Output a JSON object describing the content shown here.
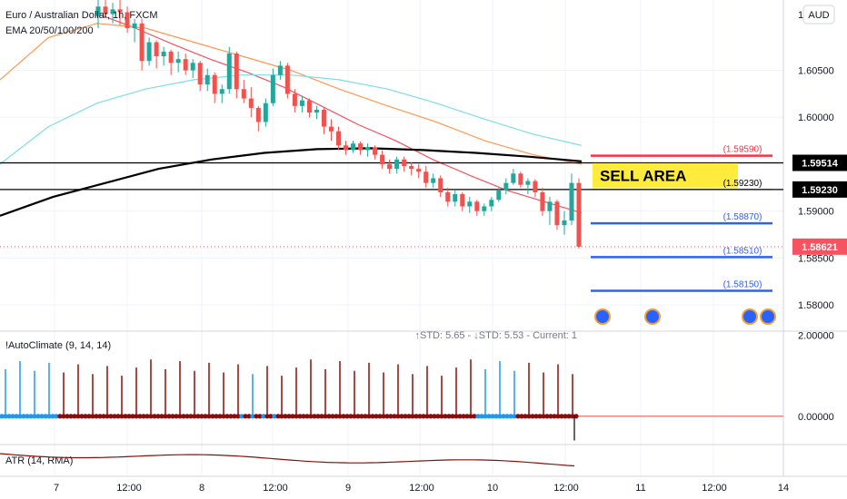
{
  "chart_data": [
    {
      "type": "candlestick",
      "title": "Euro / Australian Dollar, 1h, FXCM",
      "indicator_label": "EMA 20/50/100/200",
      "currency_button": "AUD",
      "y_ticks": [
        "1.60500",
        "1.60000",
        "1.59000",
        "1.58500",
        "1.58000"
      ],
      "y_range": [
        1.5772,
        1.6125
      ],
      "x_ticks": [
        "7",
        "12:00",
        "8",
        "12:00",
        "9",
        "12:00",
        "10",
        "12:00",
        "11",
        "12:00",
        "14"
      ],
      "candles": [
        [
          1.6108,
          1.6125,
          1.6095,
          1.6118
        ],
        [
          1.6118,
          1.6125,
          1.6108,
          1.611
        ],
        [
          1.611,
          1.6122,
          1.61,
          1.6115
        ],
        [
          1.6115,
          1.6125,
          1.6098,
          1.6112
        ],
        [
          1.6112,
          1.6118,
          1.609,
          1.6095
        ],
        [
          1.6095,
          1.6105,
          1.608,
          1.61
        ],
        [
          1.61,
          1.6105,
          1.605,
          1.606
        ],
        [
          1.606,
          1.6085,
          1.6055,
          1.608
        ],
        [
          1.608,
          1.6082,
          1.6052,
          1.6065
        ],
        [
          1.6065,
          1.6075,
          1.6055,
          1.607
        ],
        [
          1.607,
          1.6072,
          1.6045,
          1.6058
        ],
        [
          1.6058,
          1.607,
          1.6048,
          1.6062
        ],
        [
          1.6062,
          1.6068,
          1.6045,
          1.605
        ],
        [
          1.605,
          1.6062,
          1.6042,
          1.6058
        ],
        [
          1.6058,
          1.606,
          1.6028,
          1.6035
        ],
        [
          1.6035,
          1.6052,
          1.6028,
          1.6045
        ],
        [
          1.6045,
          1.6048,
          1.6015,
          1.6025
        ],
        [
          1.6025,
          1.6035,
          1.6015,
          1.603
        ],
        [
          1.603,
          1.6075,
          1.6025,
          1.6068
        ],
        [
          1.6068,
          1.607,
          1.602,
          1.603
        ],
        [
          1.603,
          1.604,
          1.6015,
          1.602
        ],
        [
          1.602,
          1.6032,
          1.6,
          1.601
        ],
        [
          1.601,
          1.6012,
          1.5985,
          1.5995
        ],
        [
          1.5995,
          1.602,
          1.599,
          1.6015
        ],
        [
          1.6015,
          1.6052,
          1.6012,
          1.6045
        ],
        [
          1.6045,
          1.606,
          1.604,
          1.6055
        ],
        [
          1.6055,
          1.6058,
          1.602,
          1.6025
        ],
        [
          1.6025,
          1.603,
          1.6005,
          1.6012
        ],
        [
          1.6012,
          1.6022,
          1.6005,
          1.6018
        ],
        [
          1.6018,
          1.602,
          1.6,
          1.6005
        ],
        [
          1.6005,
          1.6012,
          1.5998,
          1.6008
        ],
        [
          1.6008,
          1.601,
          1.5982,
          1.599
        ],
        [
          1.599,
          1.5998,
          1.5975,
          1.5985
        ],
        [
          1.5985,
          1.599,
          1.5965,
          1.597
        ],
        [
          1.597,
          1.5975,
          1.596,
          1.5965
        ],
        [
          1.5965,
          1.5975,
          1.5962,
          1.5972
        ],
        [
          1.5972,
          1.5974,
          1.596,
          1.5965
        ],
        [
          1.5965,
          1.5972,
          1.5958,
          1.5968
        ],
        [
          1.5968,
          1.597,
          1.5955,
          1.596
        ],
        [
          1.596,
          1.5965,
          1.5945,
          1.595
        ],
        [
          1.595,
          1.5955,
          1.594,
          1.5945
        ],
        [
          1.5945,
          1.5958,
          1.594,
          1.5955
        ],
        [
          1.5955,
          1.5958,
          1.5942,
          1.5948
        ],
        [
          1.5948,
          1.5952,
          1.5938,
          1.5945
        ],
        [
          1.5945,
          1.595,
          1.5935,
          1.5942
        ],
        [
          1.5942,
          1.5948,
          1.5925,
          1.593
        ],
        [
          1.593,
          1.594,
          1.5925,
          1.5935
        ],
        [
          1.5935,
          1.5938,
          1.5915,
          1.592
        ],
        [
          1.592,
          1.5925,
          1.5905,
          1.591
        ],
        [
          1.591,
          1.5922,
          1.5905,
          1.5918
        ],
        [
          1.5918,
          1.592,
          1.59,
          1.5905
        ],
        [
          1.5905,
          1.5915,
          1.5898,
          1.591
        ],
        [
          1.591,
          1.5912,
          1.5895,
          1.59
        ],
        [
          1.59,
          1.5908,
          1.5895,
          1.5905
        ],
        [
          1.5905,
          1.5915,
          1.59,
          1.5912
        ],
        [
          1.5912,
          1.5925,
          1.591,
          1.5922
        ],
        [
          1.5922,
          1.5935,
          1.5918,
          1.593
        ],
        [
          1.593,
          1.5945,
          1.5928,
          1.594
        ],
        [
          1.594,
          1.5942,
          1.5925,
          1.5928
        ],
        [
          1.5928,
          1.5935,
          1.5918,
          1.5932
        ],
        [
          1.5932,
          1.5934,
          1.5915,
          1.592
        ],
        [
          1.592,
          1.5925,
          1.5895,
          1.59
        ],
        [
          1.59,
          1.5915,
          1.5885,
          1.591
        ],
        [
          1.591,
          1.5912,
          1.588,
          1.5885
        ],
        [
          1.5885,
          1.59,
          1.5875,
          1.589
        ],
        [
          1.589,
          1.594,
          1.5885,
          1.593
        ],
        [
          1.593,
          1.5935,
          1.586,
          1.5862
        ]
      ],
      "ema_series": [
        {
          "name": "EMA 20",
          "color": "#f7525f",
          "values": [
            1.611,
            1.6095,
            1.6078,
            1.6062,
            1.6048,
            1.6032,
            1.6012,
            1.5992,
            1.5975,
            1.5955,
            1.5938,
            1.5922,
            1.591,
            1.5898
          ]
        },
        {
          "name": "EMA 50",
          "color": "#ff9850",
          "values": [
            1.604,
            1.6085,
            1.61,
            1.6095,
            1.608,
            1.6065,
            1.605,
            1.603,
            1.6012,
            1.5995,
            1.5975,
            1.596,
            1.595
          ]
        },
        {
          "name": "EMA 100",
          "color": "#7ddde8",
          "values": [
            1.595,
            1.599,
            1.6015,
            1.603,
            1.604,
            1.6045,
            1.6045,
            1.604,
            1.603,
            1.6015,
            1.5998,
            1.5982,
            1.597
          ]
        },
        {
          "name": "EMA 200",
          "color": "#000000",
          "values": [
            1.5895,
            1.5915,
            1.593,
            1.5945,
            1.5955,
            1.5962,
            1.5966,
            1.5967,
            1.5965,
            1.5962,
            1.5958,
            1.5953
          ]
        }
      ],
      "price_labels": [
        {
          "text": "1.59514",
          "value": 1.59514,
          "bg": "#000000"
        },
        {
          "text": "1.59230",
          "value": 1.5923,
          "bg": "#000000"
        },
        {
          "text": "1.58621",
          "value": 1.58621,
          "bg": "#f7525f"
        }
      ],
      "levels": [
        {
          "text": "(1.59590)",
          "value": 1.5959,
          "color": "#f23645"
        },
        {
          "text": "(1.59230)",
          "value": 1.5923,
          "color": "#000000"
        },
        {
          "text": "(1.58870)",
          "value": 1.5887,
          "color": "#2962ff"
        },
        {
          "text": "(1.58510)",
          "value": 1.5851,
          "color": "#2962ff"
        },
        {
          "text": "(1.58150)",
          "value": 1.5815,
          "color": "#2962ff"
        }
      ],
      "horizontal_lines": [
        1.59514,
        1.5923
      ],
      "sell_area_label": "SELL AREA",
      "event_icons": 4
    },
    {
      "type": "bar",
      "title": "!AutoClimate (9, 14, 14)",
      "stats": "↑STD: 5.65 - ↓STD: 5.53 - Current: 1",
      "y_ticks": [
        "2.00000",
        "0.00000"
      ],
      "y_range": [
        -0.7,
        2.1
      ]
    },
    {
      "type": "line",
      "title": "ATR (14, RMA)"
    }
  ]
}
